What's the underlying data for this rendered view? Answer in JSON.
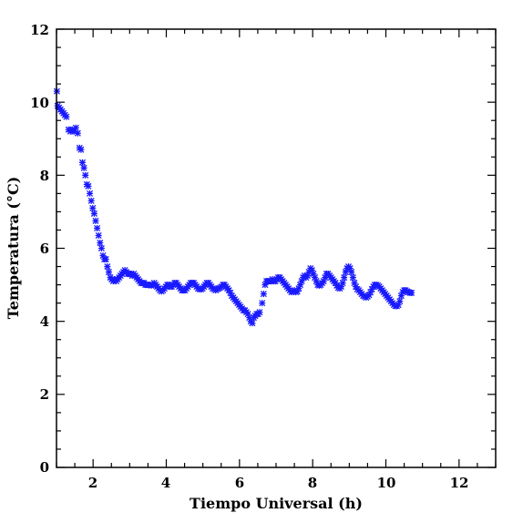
{
  "chart_data": {
    "type": "scatter",
    "title": "",
    "xlabel": "Tiempo Universal (h)",
    "ylabel": "Temperatura (°C)",
    "xlim": [
      1,
      13
    ],
    "ylim": [
      0,
      12
    ],
    "x_ticks": [
      2,
      4,
      6,
      8,
      10,
      12
    ],
    "y_ticks": [
      0,
      2,
      4,
      6,
      8,
      10,
      12
    ],
    "x_tick_labels": [
      "2",
      "4",
      "6",
      "8",
      "10",
      "12"
    ],
    "y_tick_labels": [
      "0",
      "2",
      "4",
      "6",
      "8",
      "10",
      "12"
    ],
    "grid": false,
    "legend": "none",
    "marker": "asterisk",
    "color": "#1a1aff",
    "series": [
      {
        "points": [
          [
            1.01,
            10.3
          ],
          [
            1.03,
            9.9
          ],
          [
            1.07,
            9.85
          ],
          [
            1.11,
            9.8
          ],
          [
            1.15,
            9.75
          ],
          [
            1.19,
            9.7
          ],
          [
            1.23,
            9.65
          ],
          [
            1.27,
            9.6
          ],
          [
            1.33,
            9.25
          ],
          [
            1.38,
            9.2
          ],
          [
            1.43,
            9.25
          ],
          [
            1.48,
            9.2
          ],
          [
            1.53,
            9.3
          ],
          [
            1.58,
            9.15
          ],
          [
            1.63,
            8.75
          ],
          [
            1.67,
            8.7
          ],
          [
            1.71,
            8.35
          ],
          [
            1.75,
            8.2
          ],
          [
            1.79,
            8.0
          ],
          [
            1.83,
            7.75
          ],
          [
            1.87,
            7.7
          ],
          [
            1.91,
            7.5
          ],
          [
            1.95,
            7.3
          ],
          [
            1.99,
            7.1
          ],
          [
            2.03,
            6.95
          ],
          [
            2.07,
            6.75
          ],
          [
            2.11,
            6.55
          ],
          [
            2.15,
            6.35
          ],
          [
            2.19,
            6.15
          ],
          [
            2.23,
            6.0
          ],
          [
            2.27,
            5.8
          ],
          [
            2.31,
            5.7
          ],
          [
            2.35,
            5.7
          ],
          [
            2.39,
            5.5
          ],
          [
            2.43,
            5.35
          ],
          [
            2.47,
            5.2
          ],
          [
            2.51,
            5.15
          ],
          [
            2.55,
            5.1
          ],
          [
            2.59,
            5.15
          ],
          [
            2.63,
            5.1
          ],
          [
            2.67,
            5.15
          ],
          [
            2.71,
            5.2
          ],
          [
            2.75,
            5.25
          ],
          [
            2.79,
            5.3
          ],
          [
            2.83,
            5.35
          ],
          [
            2.87,
            5.4
          ],
          [
            2.91,
            5.35
          ],
          [
            2.95,
            5.3
          ],
          [
            2.99,
            5.3
          ],
          [
            3.03,
            5.3
          ],
          [
            3.07,
            5.25
          ],
          [
            3.11,
            5.3
          ],
          [
            3.15,
            5.25
          ],
          [
            3.19,
            5.2
          ],
          [
            3.23,
            5.15
          ],
          [
            3.27,
            5.1
          ],
          [
            3.31,
            5.05
          ],
          [
            3.35,
            5.05
          ],
          [
            3.39,
            5.05
          ],
          [
            3.43,
            5.0
          ],
          [
            3.47,
            5.0
          ],
          [
            3.51,
            5.0
          ],
          [
            3.55,
            5.0
          ],
          [
            3.59,
            4.98
          ],
          [
            3.63,
            5.0
          ],
          [
            3.67,
            5.05
          ],
          [
            3.71,
            5.0
          ],
          [
            3.75,
            4.95
          ],
          [
            3.79,
            4.9
          ],
          [
            3.83,
            4.85
          ],
          [
            3.87,
            4.82
          ],
          [
            3.91,
            4.85
          ],
          [
            3.95,
            4.9
          ],
          [
            3.99,
            4.95
          ],
          [
            4.03,
            5.0
          ],
          [
            4.07,
            5.0
          ],
          [
            4.11,
            4.95
          ],
          [
            4.15,
            4.95
          ],
          [
            4.19,
            5.0
          ],
          [
            4.23,
            5.05
          ],
          [
            4.27,
            5.05
          ],
          [
            4.31,
            5.0
          ],
          [
            4.35,
            4.95
          ],
          [
            4.39,
            4.9
          ],
          [
            4.43,
            4.85
          ],
          [
            4.47,
            4.85
          ],
          [
            4.51,
            4.85
          ],
          [
            4.55,
            4.9
          ],
          [
            4.59,
            4.95
          ],
          [
            4.63,
            5.0
          ],
          [
            4.67,
            5.05
          ],
          [
            4.71,
            5.05
          ],
          [
            4.75,
            5.05
          ],
          [
            4.79,
            5.0
          ],
          [
            4.83,
            4.95
          ],
          [
            4.87,
            4.9
          ],
          [
            4.91,
            4.88
          ],
          [
            4.95,
            4.88
          ],
          [
            4.99,
            4.9
          ],
          [
            5.03,
            4.95
          ],
          [
            5.07,
            5.0
          ],
          [
            5.11,
            5.05
          ],
          [
            5.15,
            5.05
          ],
          [
            5.19,
            5.0
          ],
          [
            5.23,
            4.95
          ],
          [
            5.27,
            4.9
          ],
          [
            5.31,
            4.88
          ],
          [
            5.35,
            4.85
          ],
          [
            5.39,
            4.88
          ],
          [
            5.43,
            4.9
          ],
          [
            5.47,
            4.92
          ],
          [
            5.51,
            4.95
          ],
          [
            5.55,
            5.0
          ],
          [
            5.59,
            5.0
          ],
          [
            5.63,
            4.95
          ],
          [
            5.67,
            4.9
          ],
          [
            5.71,
            4.85
          ],
          [
            5.75,
            4.78
          ],
          [
            5.79,
            4.7
          ],
          [
            5.83,
            4.65
          ],
          [
            5.87,
            4.6
          ],
          [
            5.91,
            4.55
          ],
          [
            5.95,
            4.5
          ],
          [
            5.99,
            4.45
          ],
          [
            6.03,
            4.4
          ],
          [
            6.07,
            4.35
          ],
          [
            6.11,
            4.3
          ],
          [
            6.15,
            4.3
          ],
          [
            6.19,
            4.25
          ],
          [
            6.23,
            4.2
          ],
          [
            6.27,
            4.1
          ],
          [
            6.31,
            4.0
          ],
          [
            6.35,
            3.95
          ],
          [
            6.39,
            4.1
          ],
          [
            6.43,
            4.15
          ],
          [
            6.47,
            4.2
          ],
          [
            6.51,
            4.2
          ],
          [
            6.55,
            4.25
          ],
          [
            6.62,
            4.5
          ],
          [
            6.66,
            4.75
          ],
          [
            6.7,
            5.0
          ],
          [
            6.74,
            5.1
          ],
          [
            6.78,
            5.1
          ],
          [
            6.82,
            5.1
          ],
          [
            6.86,
            5.1
          ],
          [
            6.9,
            5.15
          ],
          [
            6.94,
            5.1
          ],
          [
            6.98,
            5.1
          ],
          [
            7.02,
            5.15
          ],
          [
            7.06,
            5.2
          ],
          [
            7.1,
            5.2
          ],
          [
            7.14,
            5.15
          ],
          [
            7.18,
            5.1
          ],
          [
            7.22,
            5.05
          ],
          [
            7.26,
            5.0
          ],
          [
            7.3,
            4.95
          ],
          [
            7.34,
            4.9
          ],
          [
            7.38,
            4.85
          ],
          [
            7.42,
            4.8
          ],
          [
            7.46,
            4.82
          ],
          [
            7.5,
            4.85
          ],
          [
            7.54,
            4.8
          ],
          [
            7.58,
            4.82
          ],
          [
            7.62,
            4.9
          ],
          [
            7.66,
            5.0
          ],
          [
            7.7,
            5.1
          ],
          [
            7.74,
            5.2
          ],
          [
            7.78,
            5.25
          ],
          [
            7.82,
            5.2
          ],
          [
            7.86,
            5.25
          ],
          [
            7.9,
            5.35
          ],
          [
            7.94,
            5.45
          ],
          [
            7.98,
            5.4
          ],
          [
            8.02,
            5.3
          ],
          [
            8.06,
            5.2
          ],
          [
            8.1,
            5.1
          ],
          [
            8.14,
            5.0
          ],
          [
            8.18,
            4.98
          ],
          [
            8.22,
            5.0
          ],
          [
            8.26,
            5.05
          ],
          [
            8.3,
            5.1
          ],
          [
            8.34,
            5.2
          ],
          [
            8.38,
            5.3
          ],
          [
            8.42,
            5.3
          ],
          [
            8.46,
            5.25
          ],
          [
            8.5,
            5.2
          ],
          [
            8.54,
            5.15
          ],
          [
            8.58,
            5.1
          ],
          [
            8.62,
            5.05
          ],
          [
            8.66,
            4.98
          ],
          [
            8.7,
            4.92
          ],
          [
            8.74,
            4.9
          ],
          [
            8.78,
            4.95
          ],
          [
            8.82,
            5.05
          ],
          [
            8.86,
            5.2
          ],
          [
            8.9,
            5.35
          ],
          [
            8.94,
            5.45
          ],
          [
            8.98,
            5.5
          ],
          [
            9.02,
            5.45
          ],
          [
            9.06,
            5.35
          ],
          [
            9.1,
            5.2
          ],
          [
            9.14,
            5.05
          ],
          [
            9.18,
            4.95
          ],
          [
            9.22,
            4.88
          ],
          [
            9.26,
            4.85
          ],
          [
            9.3,
            4.8
          ],
          [
            9.34,
            4.75
          ],
          [
            9.38,
            4.7
          ],
          [
            9.42,
            4.68
          ],
          [
            9.46,
            4.65
          ],
          [
            9.5,
            4.68
          ],
          [
            9.54,
            4.72
          ],
          [
            9.58,
            4.8
          ],
          [
            9.62,
            4.88
          ],
          [
            9.66,
            4.95
          ],
          [
            9.7,
            5.0
          ],
          [
            9.74,
            5.0
          ],
          [
            9.78,
            4.98
          ],
          [
            9.82,
            4.95
          ],
          [
            9.86,
            4.9
          ],
          [
            9.9,
            4.85
          ],
          [
            9.94,
            4.8
          ],
          [
            9.98,
            4.75
          ],
          [
            10.02,
            4.7
          ],
          [
            10.06,
            4.65
          ],
          [
            10.1,
            4.6
          ],
          [
            10.14,
            4.55
          ],
          [
            10.18,
            4.5
          ],
          [
            10.22,
            4.45
          ],
          [
            10.26,
            4.42
          ],
          [
            10.3,
            4.42
          ],
          [
            10.34,
            4.45
          ],
          [
            10.38,
            4.55
          ],
          [
            10.42,
            4.7
          ],
          [
            10.46,
            4.8
          ],
          [
            10.5,
            4.85
          ],
          [
            10.54,
            4.85
          ],
          [
            10.58,
            4.82
          ],
          [
            10.62,
            4.8
          ],
          [
            10.66,
            4.78
          ],
          [
            10.7,
            4.78
          ]
        ]
      }
    ]
  }
}
